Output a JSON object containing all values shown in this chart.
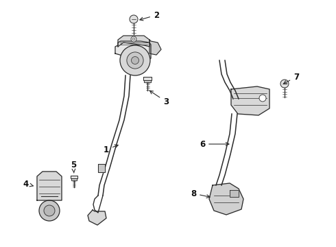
{
  "bg_color": "#ffffff",
  "line_color": "#2a2a2a",
  "label_color": "#111111",
  "figsize": [
    4.9,
    3.6
  ],
  "dpi": 100,
  "lw_main": 1.0,
  "lw_thin": 0.6,
  "label_fs": 8.5
}
